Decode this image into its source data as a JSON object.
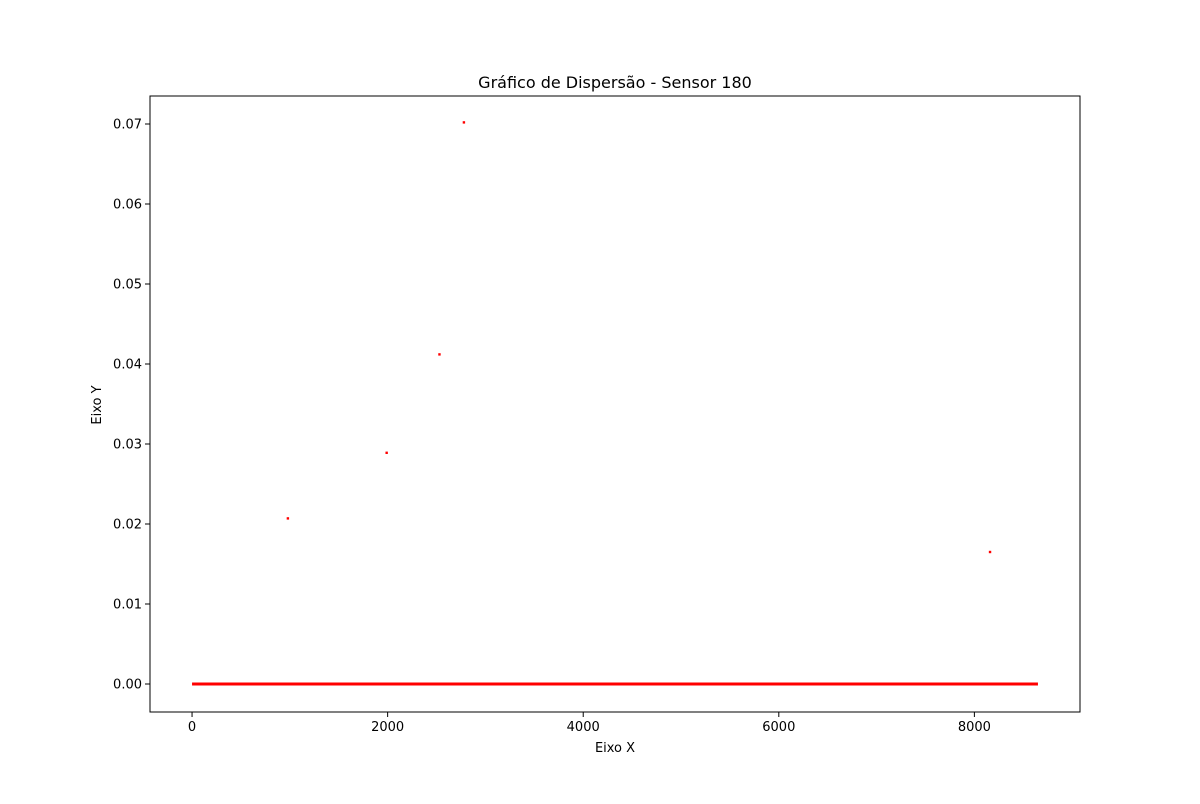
{
  "chart_data": {
    "type": "scatter",
    "title": "Gráfico de Dispersão - Sensor 180",
    "xlabel": "Eixo X",
    "ylabel": "Eixo Y",
    "xlim": [
      -430,
      9080
    ],
    "ylim": [
      -0.0035,
      0.0735
    ],
    "xticks": [
      0,
      2000,
      4000,
      6000,
      8000
    ],
    "xtick_labels": [
      "0",
      "2000",
      "4000",
      "6000",
      "8000"
    ],
    "yticks": [
      0.0,
      0.01,
      0.02,
      0.03,
      0.04,
      0.05,
      0.06,
      0.07
    ],
    "ytick_labels": [
      "0.00",
      "0.01",
      "0.02",
      "0.03",
      "0.04",
      "0.05",
      "0.06",
      "0.07"
    ],
    "grid": false,
    "marker_color": "#ff0000",
    "baseline": {
      "description": "dense points at y = 0",
      "x_range": [
        0,
        8650
      ],
      "y": 0.0
    },
    "points": [
      {
        "x": 980,
        "y": 0.0207
      },
      {
        "x": 1990,
        "y": 0.0289
      },
      {
        "x": 2530,
        "y": 0.0412
      },
      {
        "x": 2780,
        "y": 0.0702
      },
      {
        "x": 8160,
        "y": 0.0165
      }
    ]
  }
}
